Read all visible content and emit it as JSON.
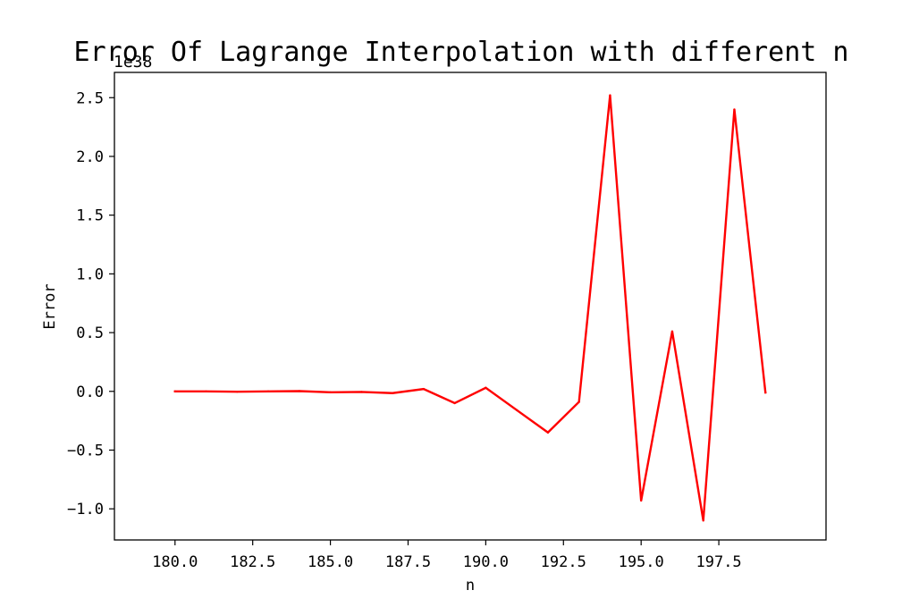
{
  "chart_data": {
    "type": "line",
    "title": "Error Of Lagrange Interpolation with different n",
    "xlabel": "n",
    "ylabel": "Error",
    "y_offset_label": "1e38",
    "xlim": [
      178.05,
      200.95
    ],
    "ylim": [
      -1.265,
      2.715
    ],
    "x_ticks": [
      180.0,
      182.5,
      185.0,
      187.5,
      190.0,
      192.5,
      195.0,
      197.5
    ],
    "x_tick_labels": [
      "180.0",
      "182.5",
      "185.0",
      "187.5",
      "190.0",
      "192.5",
      "195.0",
      "197.5"
    ],
    "y_ticks": [
      2.5,
      2.0,
      1.5,
      1.0,
      0.5,
      0.0,
      -0.5,
      -1.0
    ],
    "y_tick_labels": [
      "2.5",
      "2.0",
      "1.5",
      "1.0",
      "0.5",
      "0.0",
      "−0.5",
      "−1.0"
    ],
    "grid": false,
    "series": [
      {
        "color": "#ff0000",
        "x": [
          180,
          181,
          182,
          183,
          184,
          185,
          186,
          187,
          188,
          189,
          190,
          191,
          192,
          193,
          194,
          195,
          196,
          197,
          198,
          199
        ],
        "values": [
          0.0,
          0.0,
          -0.003,
          0.0,
          0.002,
          -0.008,
          -0.005,
          -0.015,
          0.02,
          -0.1,
          0.03,
          -0.16,
          -0.35,
          -0.09,
          2.52,
          -0.93,
          0.51,
          -1.1,
          2.4,
          -0.01
        ]
      }
    ]
  }
}
